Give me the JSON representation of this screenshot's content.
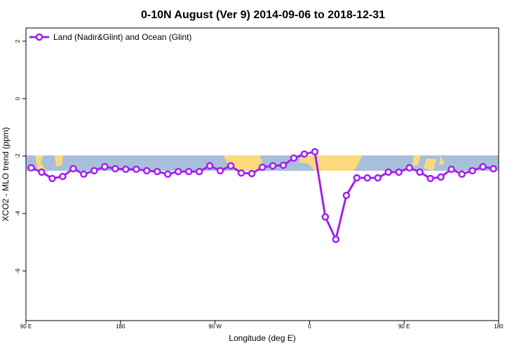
{
  "chart_data": {
    "type": "line",
    "title": "0-10N August (Ver 9)   2014-09-06 to 2018-12-31",
    "xlabel": "Longitude (deg E)",
    "ylabel": "XCO2 - MLO trend (ppm)",
    "x": [
      95,
      105,
      115,
      125,
      135,
      145,
      155,
      165,
      175,
      185,
      195,
      205,
      215,
      225,
      235,
      245,
      255,
      265,
      275,
      285,
      295,
      305,
      315,
      325,
      335,
      345,
      355,
      365,
      375,
      385,
      395,
      405,
      415,
      425,
      435,
      445,
      455,
      465,
      475,
      485,
      495,
      505,
      515,
      525,
      535
    ],
    "series": [
      {
        "name": "Land (Nadir&Glint) and Ocean (Glint)",
        "color": "#a020f0",
        "values": [
          -2.41,
          -2.56,
          -2.78,
          -2.71,
          -2.44,
          -2.63,
          -2.51,
          -2.37,
          -2.44,
          -2.46,
          -2.46,
          -2.51,
          -2.54,
          -2.63,
          -2.54,
          -2.54,
          -2.54,
          -2.34,
          -2.51,
          -2.34,
          -2.59,
          -2.61,
          -2.39,
          -2.34,
          -2.32,
          -2.07,
          -1.93,
          -1.85,
          -4.12,
          -4.9,
          -3.37,
          -2.76,
          -2.76,
          -2.76,
          -2.56,
          -2.56,
          -2.41,
          -2.56,
          -2.78,
          -2.73,
          -2.46,
          -2.63,
          -2.51,
          -2.37,
          -2.44
        ]
      }
    ],
    "xlim": [
      90,
      540
    ],
    "xticks": [
      {
        "value": 90,
        "label": "90 E"
      },
      {
        "value": 180,
        "label": "180"
      },
      {
        "value": 270,
        "label": "90 W"
      },
      {
        "value": 360,
        "label": "0"
      },
      {
        "value": 450,
        "label": "90 E"
      },
      {
        "value": 540,
        "label": "180"
      }
    ],
    "ylim": [
      -7.73,
      2.46
    ],
    "yticks": [
      -6,
      -4,
      -2,
      0,
      2
    ],
    "legend": "top-left"
  }
}
